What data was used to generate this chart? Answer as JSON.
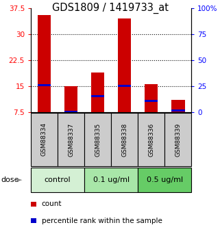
{
  "title": "GDS1809 / 1419733_at",
  "samples": [
    "GSM88334",
    "GSM88337",
    "GSM88335",
    "GSM88338",
    "GSM88336",
    "GSM88339"
  ],
  "red_values": [
    35.5,
    15.0,
    19.0,
    34.5,
    15.5,
    11.0
  ],
  "blue_values": [
    15.2,
    7.6,
    12.2,
    15.1,
    10.8,
    8.0
  ],
  "y_min": 7.5,
  "y_max": 37.5,
  "y_ticks_left": [
    7.5,
    15,
    22.5,
    30,
    37.5
  ],
  "y_ticks_right": [
    0,
    25,
    50,
    75,
    100
  ],
  "dose_groups": [
    {
      "label": "control",
      "start": 0,
      "end": 2,
      "color": "#d4f0d4"
    },
    {
      "label": "0.1 ug/ml",
      "start": 2,
      "end": 4,
      "color": "#a8e6a8"
    },
    {
      "label": "0.5 ug/ml",
      "start": 4,
      "end": 6,
      "color": "#66cc66"
    }
  ],
  "bar_width": 0.5,
  "bar_color_red": "#cc0000",
  "bar_color_blue": "#0000cc",
  "sample_bg_color": "#cccccc",
  "dose_label": "dose",
  "legend_items": [
    {
      "color": "#cc0000",
      "label": "count"
    },
    {
      "color": "#0000cc",
      "label": "percentile rank within the sample"
    }
  ],
  "title_fontsize": 10.5,
  "tick_fontsize": 7.5,
  "sample_fontsize": 6.5,
  "dose_fontsize": 8
}
